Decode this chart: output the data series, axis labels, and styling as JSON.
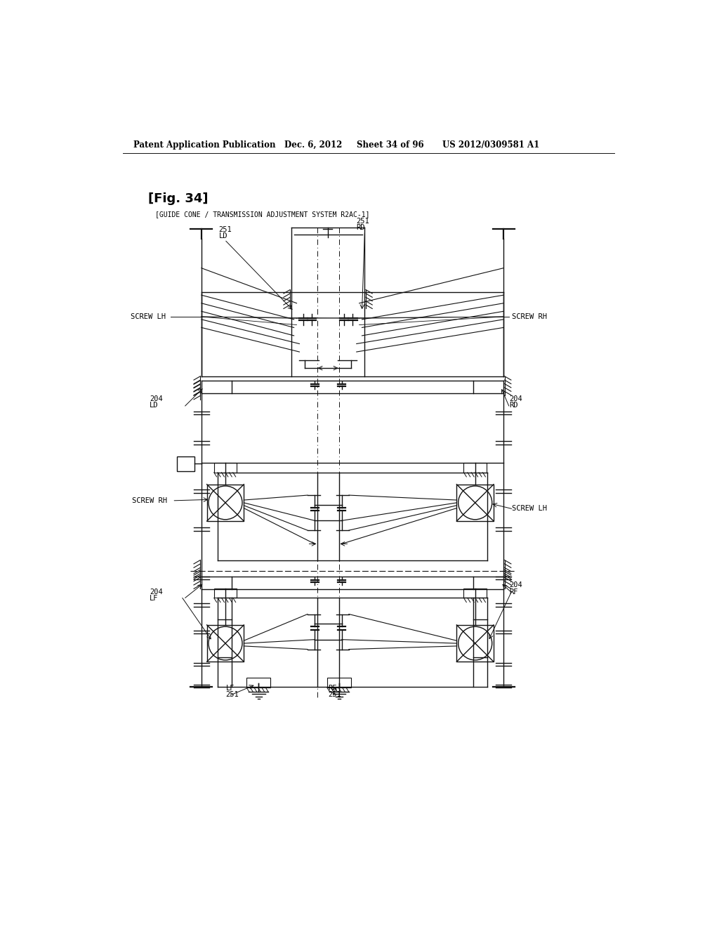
{
  "bg_color": "#ffffff",
  "title_header": "Patent Application Publication",
  "date_header": "Dec. 6, 2012",
  "sheet_header": "Sheet 34 of 96",
  "patent_header": "US 2012/0309581 A1",
  "fig_label": "[Fig. 34]",
  "subtitle": "[GUIDE CONE / TRANSMISSION ADJUSTMENT SYSTEM R2AC-1]"
}
